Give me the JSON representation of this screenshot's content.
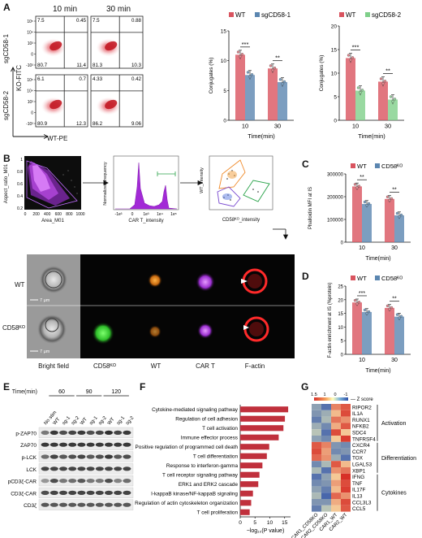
{
  "panels": {
    "A": "A",
    "B": "B",
    "C": "C",
    "D": "D",
    "E": "E",
    "F": "F",
    "G": "G"
  },
  "flow": {
    "col_titles": [
      "10 min",
      "30 min"
    ],
    "row_labels": [
      "sgCD58-1",
      "sgCD58-2"
    ],
    "y_axis": "KO-FITC",
    "x_axis": "WT-PE",
    "y_ticks": [
      "10⁵",
      "10⁴",
      "10³",
      "0",
      "-10³"
    ],
    "quadrants": [
      {
        "tl": "7.5",
        "tr": "0.45",
        "bl": "80.7",
        "br": "11.4"
      },
      {
        "tl": "7.5",
        "tr": "0.88",
        "bl": "81.3",
        "br": "10.3"
      },
      {
        "tl": "6.1",
        "tr": "0.7",
        "bl": "80.9",
        "br": "12.3"
      },
      {
        "tl": "4.33",
        "tr": "0.42",
        "bl": "86.2",
        "br": "9.06"
      }
    ]
  },
  "chart_data": [
    {
      "type": "bar",
      "id": "A-sgCD58-1",
      "categories": [
        "10",
        "30"
      ],
      "series": [
        {
          "name": "WT",
          "values": [
            11.0,
            8.7
          ]
        },
        {
          "name": "sgCD58-1",
          "values": [
            7.6,
            6.4
          ]
        }
      ],
      "ylabel": "Conjugates (%)",
      "xlabel": "Time(min)",
      "ylim": [
        0,
        15
      ],
      "yticks": [
        "0",
        "5",
        "10",
        "15"
      ],
      "significance": [
        "***",
        "**"
      ]
    },
    {
      "type": "bar",
      "id": "A-sgCD58-2",
      "categories": [
        "10",
        "30"
      ],
      "series": [
        {
          "name": "WT",
          "values": [
            13.2,
            8.2
          ]
        },
        {
          "name": "sgCD58-2",
          "values": [
            6.3,
            4.4
          ]
        }
      ],
      "ylabel": "Conjugates (%)",
      "xlabel": "Time(min)",
      "ylim": [
        0,
        20
      ],
      "yticks": [
        "0",
        "5",
        "10",
        "15",
        "20"
      ],
      "significance": [
        "***",
        "**"
      ]
    },
    {
      "type": "bar",
      "id": "C",
      "categories": [
        "10",
        "30"
      ],
      "series": [
        {
          "name": "WT",
          "values": [
            245000,
            190000
          ]
        },
        {
          "name": "CD58KO",
          "values": [
            168000,
            118000
          ]
        }
      ],
      "ylabel": "Phalloidin MFI at IS",
      "xlabel": "Time(min)",
      "ylim": [
        0,
        300000
      ],
      "yticks": [
        "0",
        "100000",
        "200000",
        "300000"
      ],
      "significance": [
        "**",
        "**"
      ]
    },
    {
      "type": "bar",
      "id": "D",
      "categories": [
        "10",
        "30"
      ],
      "series": [
        {
          "name": "WT",
          "values": [
            19.0,
            17.0
          ]
        },
        {
          "name": "CD58KO",
          "values": [
            15.5,
            13.8
          ]
        }
      ],
      "ylabel": "F-actin enrichment at IS (%protein)",
      "xlabel": "Time(min)",
      "ylim": [
        0,
        25
      ],
      "yticks": [
        "0",
        "5",
        "10",
        "15",
        "20",
        "25"
      ],
      "significance": [
        "***",
        "**"
      ]
    },
    {
      "type": "bar",
      "id": "F",
      "orientation": "horizontal",
      "categories": [
        "Cytokine-mediated signaling pathway",
        "Regulation of cell adhesion",
        "T cell activation",
        "Immune effector process",
        "Positive regulation of programmed cell death",
        "T cell differentiation",
        "Response to interferon-gamma",
        "T cell receptor signaling pathway",
        "ERK1 and ERK2 cascade",
        "I-kappaB kinase/NF-kappaB signaling",
        "Regulation of actin cytoskeleton organization",
        "T cell proliferation"
      ],
      "values": [
        16.2,
        15.1,
        14.6,
        13.0,
        9.8,
        9.0,
        7.5,
        6.5,
        6.1,
        4.3,
        3.7,
        3.2
      ],
      "xlim": [
        0,
        17
      ],
      "xticks": [
        "0",
        "5",
        "10",
        "15"
      ],
      "xlabel": "−log₁₀(P value)"
    },
    {
      "type": "heatmap",
      "id": "G",
      "columns": [
        "CAR1_CD58KO",
        "CAR2_CD58KO",
        "CAR1_WT",
        "CAR2_WT"
      ],
      "rows": [
        "RIPOR2",
        "IL1A",
        "RUNX1",
        "NFKB2",
        "SDC4",
        "TNFRSF4",
        "CXCR4",
        "CCR7",
        "TOX",
        "LGALS3",
        "XBP1",
        "IFNG",
        "TNF",
        "IL17F",
        "IL13",
        "CCL3L3",
        "CCL5"
      ],
      "values": [
        [
          -0.8,
          -1.2,
          0.9,
          1.2
        ],
        [
          -0.9,
          -0.7,
          0.5,
          1.3
        ],
        [
          -1.1,
          -0.6,
          1.0,
          0.8
        ],
        [
          -0.7,
          -1.0,
          0.6,
          1.2
        ],
        [
          -0.5,
          -1.2,
          1.3,
          0.4
        ],
        [
          -0.8,
          -1.0,
          0.4,
          1.4
        ],
        [
          1.2,
          0.9,
          -0.9,
          -1.0
        ],
        [
          1.3,
          0.7,
          -1.0,
          -0.9
        ],
        [
          1.1,
          0.8,
          -0.7,
          -1.2
        ],
        [
          -1.0,
          -0.6,
          1.2,
          0.5
        ],
        [
          -0.6,
          -1.2,
          0.8,
          1.0
        ],
        [
          -1.2,
          -0.8,
          0.4,
          1.5
        ],
        [
          -1.0,
          -0.9,
          0.7,
          1.3
        ],
        [
          -0.8,
          -1.1,
          0.5,
          1.4
        ],
        [
          -0.6,
          -1.3,
          1.1,
          0.8
        ],
        [
          -0.9,
          -0.9,
          0.6,
          1.3
        ],
        [
          -1.1,
          -0.5,
          0.4,
          1.2
        ]
      ],
      "colorbar_ticks": [
        "1.5",
        "1",
        "0",
        "-1"
      ],
      "colorbar_label": "Z score",
      "groups": [
        "Activation",
        "Differentiation",
        "Cytokines"
      ]
    }
  ],
  "legend_names": {
    "wt": "WT",
    "sg1": "sgCD58-1",
    "sg2": "sgCD58-2",
    "ko": "CD58ᴷᴼ"
  },
  "colors": {
    "wt": "#d9545f",
    "sg1": "#5b86b0",
    "sg2": "#7fcf8a",
    "ko": "#5b86b0"
  },
  "gating": {
    "p1_y": "Aspect_ratio_M01",
    "p1_x": "Area_M01",
    "p1_xticks": [
      "0",
      "200",
      "400",
      "600",
      "800",
      "1000"
    ],
    "p1_yticks": [
      "0.2",
      "0.4",
      "0.6",
      "0.8",
      "1"
    ],
    "p2_y": "Normalized frequency",
    "p2_x": "CAR T_intensity",
    "p2_xticks": [
      "-1e³",
      "0",
      "1e³",
      "1e⁴",
      "1e⁵"
    ],
    "p3_y": "WT_intensity",
    "p3_x": "CD58ᴷᴼ_intensity"
  },
  "microscopy": {
    "rows": [
      "WT",
      "CD58ᴷᴼ"
    ],
    "cols": [
      "Bright field",
      "CD58ᴷᴼ",
      "WT",
      "CAR T",
      "F-actin"
    ],
    "scale": "7 μm"
  },
  "western": {
    "time_label": "Time(min)",
    "time_points": [
      "60",
      "90",
      "120"
    ],
    "lanes": [
      "No stim",
      "WT",
      "sg-1",
      "sg-2",
      "WT",
      "sg-1",
      "sg-2",
      "WT",
      "sg-1",
      "sg-2"
    ],
    "rows": [
      "p-ZAP70",
      "ZAP70",
      "p-LCK",
      "LCK",
      "pCD3ζ-CAR",
      "CD3ζ-CAR",
      "CD3ζ"
    ]
  }
}
